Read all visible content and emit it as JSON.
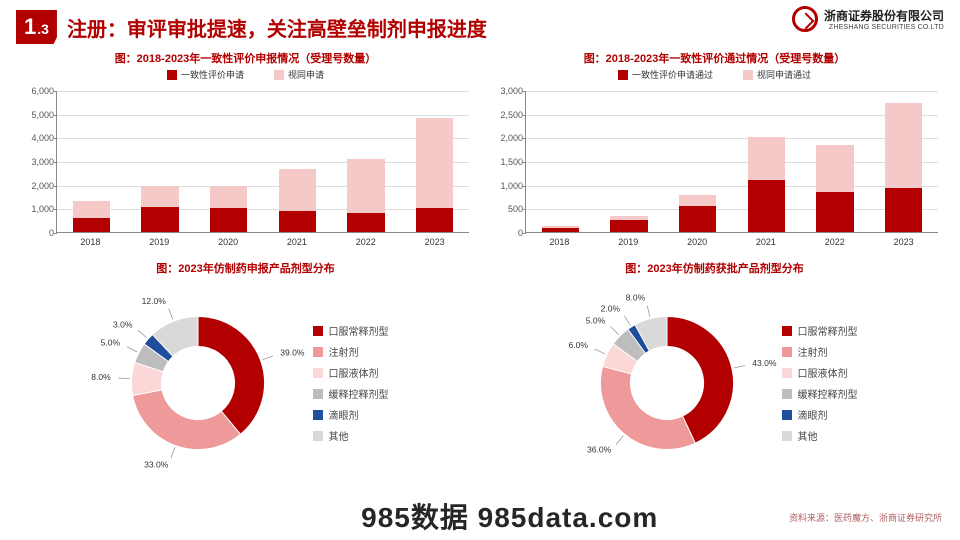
{
  "header": {
    "section_num_big": "1",
    "section_num_small": ".3",
    "title": "注册：审评审批提速，关注高壁垒制剂申报进度",
    "logo_cn": "浙商证券股份有限公司",
    "logo_en": "ZHESHANG SECURITIES CO.LTD"
  },
  "colors": {
    "series_dark": "#b20000",
    "series_light": "#f6c9c9",
    "axis": "#888888",
    "grid": "#dddddd",
    "text": "#333333"
  },
  "bar_left": {
    "title": "图：2018-2023年一致性评价申报情况（受理号数量）",
    "legend": [
      {
        "label": "一致性评价申请",
        "color": "#b20000"
      },
      {
        "label": "视同申请",
        "color": "#f6c9c9"
      }
    ],
    "categories": [
      "2018",
      "2019",
      "2020",
      "2021",
      "2022",
      "2023"
    ],
    "series_dark": [
      600,
      1050,
      1000,
      900,
      800,
      1000
    ],
    "series_light": [
      700,
      900,
      950,
      1750,
      2300,
      3800
    ],
    "y_max": 6000,
    "y_tick_step": 1000,
    "bar_width_pct": 9
  },
  "bar_right": {
    "title": "图：2018-2023年一致性评价通过情况（受理号数量）",
    "legend": [
      {
        "label": "一致性评价申请通过",
        "color": "#b20000"
      },
      {
        "label": "视同申请通过",
        "color": "#f6c9c9"
      }
    ],
    "categories": [
      "2018",
      "2019",
      "2020",
      "2021",
      "2022",
      "2023"
    ],
    "series_dark": [
      80,
      260,
      560,
      1100,
      840,
      920
    ],
    "series_light": [
      40,
      80,
      220,
      900,
      1000,
      1800
    ],
    "y_max": 3000,
    "y_tick_step": 500,
    "bar_width_pct": 9
  },
  "donut_left": {
    "title": "图：2023年仿制药申报产品剂型分布",
    "slices": [
      {
        "label": "口服常释剂型",
        "value": 39.0,
        "color": "#b20000"
      },
      {
        "label": "注射剂",
        "value": 33.0,
        "color": "#ef9a9a"
      },
      {
        "label": "口服液体剂",
        "value": 8.0,
        "color": "#fbd7d7"
      },
      {
        "label": "缓释控释剂型",
        "value": 5.0,
        "color": "#bdbdbd"
      },
      {
        "label": "滴眼剂",
        "value": 3.0,
        "color": "#1f4e9c"
      },
      {
        "label": "其他",
        "value": 12.0,
        "color": "#d9d9d9"
      }
    ],
    "inner_radius": 0.55
  },
  "donut_right": {
    "title": "图：2023年仿制药获批产品剂型分布",
    "slices": [
      {
        "label": "口服常释剂型",
        "value": 43.0,
        "color": "#b20000"
      },
      {
        "label": "注射剂",
        "value": 36.0,
        "color": "#ef9a9a"
      },
      {
        "label": "口服液体剂",
        "value": 6.0,
        "color": "#fbd7d7"
      },
      {
        "label": "缓释控释剂型",
        "value": 5.0,
        "color": "#bdbdbd"
      },
      {
        "label": "滴眼剂",
        "value": 2.0,
        "color": "#1f4e9c"
      },
      {
        "label": "其他",
        "value": 8.0,
        "color": "#d9d9d9"
      }
    ],
    "inner_radius": 0.55
  },
  "source_text": "资料来源：医药魔方、浙商证券研究所",
  "watermark": "985数据 985data.com"
}
